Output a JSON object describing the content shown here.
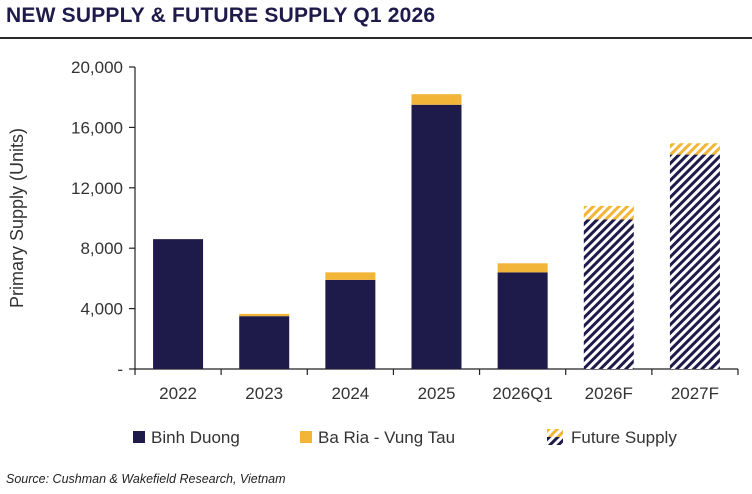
{
  "header": {
    "title": "NEW SUPPLY & FUTURE SUPPLY Q1 2026"
  },
  "footer": {
    "source": "Source: Cushman & Wakefield Research, Vietnam"
  },
  "colors": {
    "binh_duong": "#1e1b4b",
    "ba_ria": "#f2b537",
    "hatch_bg": "#ffffff"
  },
  "chart_data": {
    "type": "bar",
    "stacked": true,
    "title": "",
    "xlabel": "",
    "ylabel": "Primary Supply (Units)",
    "ylim": [
      0,
      20000
    ],
    "yticks": [
      0,
      4000,
      8000,
      12000,
      16000,
      20000
    ],
    "ytick_labels": [
      "-",
      "4,000",
      "8,000",
      "12,000",
      "16,000",
      "20,000"
    ],
    "categories": [
      "2022",
      "2023",
      "2024",
      "2025",
      "2026Q1",
      "2026F",
      "2027F"
    ],
    "future_categories": [
      "2026F",
      "2027F"
    ],
    "series": [
      {
        "name": "Binh Duong",
        "values": [
          8600,
          3500,
          5900,
          17500,
          6400,
          9900,
          14200
        ]
      },
      {
        "name": "Ba Ria - Vung Tau",
        "values": [
          0,
          150,
          500,
          700,
          600,
          900,
          750
        ]
      }
    ],
    "legend": [
      "Binh Duong",
      "Ba Ria - Vung Tau",
      "Future Supply"
    ],
    "legend_position": "bottom",
    "grid": false
  }
}
